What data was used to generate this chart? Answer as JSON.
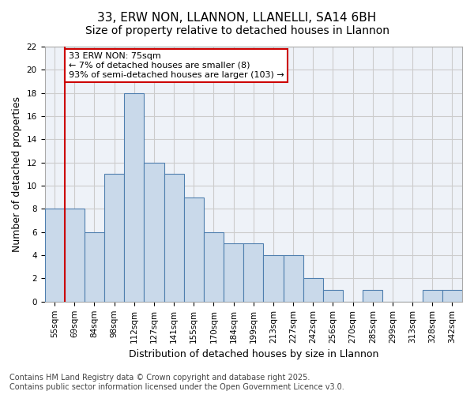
{
  "title_line1": "33, ERW NON, LLANNON, LLANELLI, SA14 6BH",
  "title_line2": "Size of property relative to detached houses in Llannon",
  "xlabel": "Distribution of detached houses by size in Llannon",
  "ylabel": "Number of detached properties",
  "bar_labels": [
    "55sqm",
    "69sqm",
    "84sqm",
    "98sqm",
    "112sqm",
    "127sqm",
    "141sqm",
    "155sqm",
    "170sqm",
    "184sqm",
    "199sqm",
    "213sqm",
    "227sqm",
    "242sqm",
    "256sqm",
    "270sqm",
    "285sqm",
    "299sqm",
    "313sqm",
    "328sqm",
    "342sqm"
  ],
  "bar_values": [
    8,
    8,
    6,
    11,
    18,
    12,
    11,
    9,
    6,
    5,
    5,
    4,
    4,
    2,
    1,
    0,
    1,
    0,
    0,
    1,
    1
  ],
  "bar_color": "#c9d9ea",
  "bar_edge_color": "#4f7faf",
  "red_line_index": 1,
  "annotation_text": "33 ERW NON: 75sqm\n← 7% of detached houses are smaller (8)\n93% of semi-detached houses are larger (103) →",
  "annotation_box_color": "#ffffff",
  "annotation_box_edge": "#cc0000",
  "ylim": [
    0,
    22
  ],
  "yticks": [
    0,
    2,
    4,
    6,
    8,
    10,
    12,
    14,
    16,
    18,
    20,
    22
  ],
  "grid_color": "#cccccc",
  "bg_color": "#eef2f8",
  "footer_line1": "Contains HM Land Registry data © Crown copyright and database right 2025.",
  "footer_line2": "Contains public sector information licensed under the Open Government Licence v3.0.",
  "title_fontsize": 11,
  "subtitle_fontsize": 10,
  "axis_label_fontsize": 9,
  "tick_fontsize": 7.5,
  "annotation_fontsize": 8,
  "footer_fontsize": 7
}
